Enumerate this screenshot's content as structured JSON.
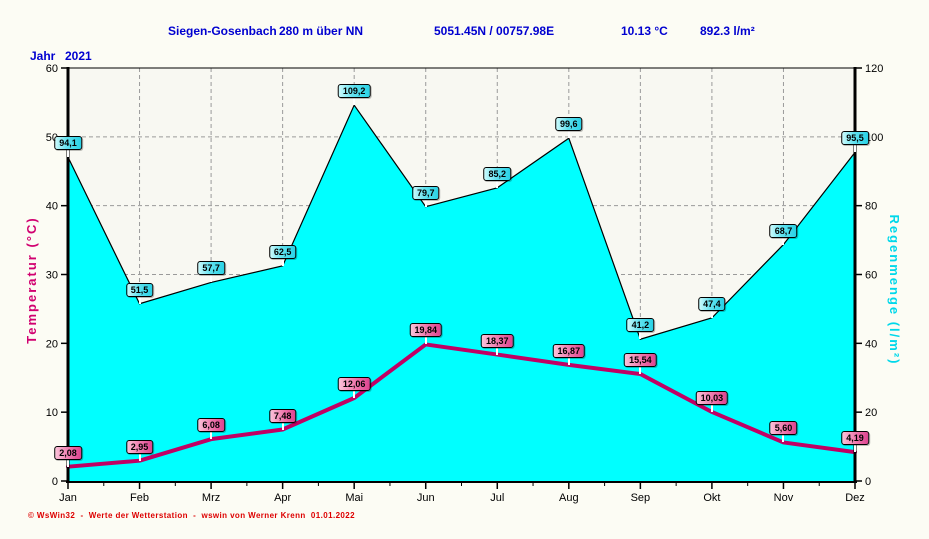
{
  "header": {
    "station": "Siegen-Gosenbach",
    "elevation": "280 m über NN",
    "coordinates": "5051.45N / 00757.98E",
    "mean_temperature": "10.13 °C",
    "total_rainfall": "892.3 l/m²",
    "year_label": "Jahr",
    "year": "2021"
  },
  "footer": {
    "credit": "© WsWin32  -  Werte der Wetterstation  -  wswin von Werner Krenn  01.01.2022"
  },
  "colors": {
    "header_text": "#0000d0",
    "footer_text": "#dd0000",
    "rain_fill": "#00ffff",
    "rain_axis_title": "#00d8ea",
    "temp_line": "#c00064",
    "temp_axis_title": "#d10070",
    "gridline": "#9a9a9a",
    "axis": "#000000",
    "plot_background": "#f8f8f2"
  },
  "chart_data": {
    "type": "combo",
    "categories": [
      "Jan",
      "Feb",
      "Mrz",
      "Apr",
      "Mai",
      "Jun",
      "Jul",
      "Aug",
      "Sep",
      "Okt",
      "Nov",
      "Dez"
    ],
    "series": [
      {
        "name": "Regenmenge",
        "type": "area",
        "axis": "right",
        "color": "#00ffff",
        "values": [
          94.1,
          51.5,
          57.7,
          62.5,
          109.2,
          79.7,
          85.2,
          99.6,
          41.2,
          47.4,
          68.7,
          95.5
        ],
        "labels": [
          "94,1",
          "51,5",
          "57,7",
          "62,5",
          "109,2",
          "79,7",
          "85,2",
          "99,6",
          "41,2",
          "47,4",
          "68,7",
          "95,5"
        ]
      },
      {
        "name": "Temperatur",
        "type": "line",
        "axis": "left",
        "color": "#c00064",
        "values": [
          2.08,
          2.95,
          6.08,
          7.48,
          12.06,
          19.84,
          18.37,
          16.87,
          15.54,
          10.03,
          5.6,
          4.19
        ],
        "labels": [
          "2,08",
          "2,95",
          "6,08",
          "7,48",
          "12,06",
          "19,84",
          "18,37",
          "16,87",
          "15,54",
          "10,03",
          "5,60",
          "4,19"
        ]
      }
    ],
    "left_axis": {
      "title": "Temperatur  (°C)",
      "min": 0,
      "max": 60,
      "ticks": [
        60,
        50,
        40,
        30,
        20,
        10,
        0
      ]
    },
    "right_axis": {
      "title": "Regenmenge  (l/m²)",
      "min": 0,
      "max": 120,
      "ticks": [
        120,
        100,
        80,
        60,
        40,
        20,
        0
      ]
    },
    "grid": true,
    "legend_position": "none"
  }
}
